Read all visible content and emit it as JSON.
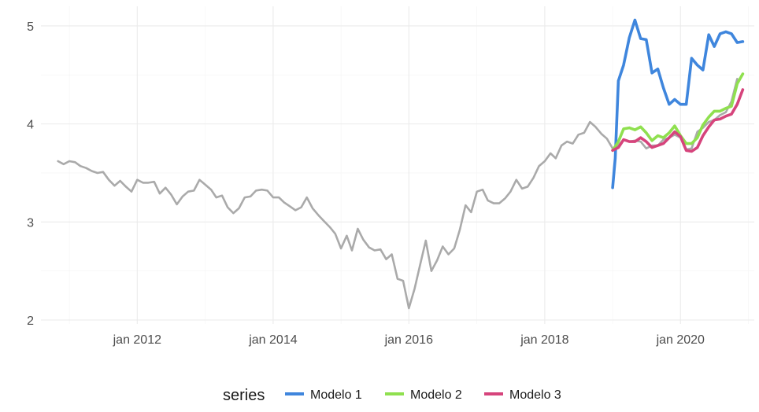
{
  "chart_data": {
    "type": "line",
    "title": "",
    "xlabel": "",
    "ylabel": "",
    "xlim": [
      "2010-08-01",
      "2021-02-01"
    ],
    "ylim": [
      1.96,
      5.2
    ],
    "y_ticks": [
      2,
      3,
      4,
      5
    ],
    "x_ticks": [
      {
        "date": "2012-01-01",
        "label": "jan 2012"
      },
      {
        "date": "2014-01-01",
        "label": "jan 2014"
      },
      {
        "date": "2016-01-01",
        "label": "jan 2016"
      },
      {
        "date": "2018-01-01",
        "label": "jan 2018"
      },
      {
        "date": "2020-01-01",
        "label": "jan 2020"
      }
    ],
    "grid": true,
    "legend": {
      "title": "series",
      "position": "bottom"
    },
    "series": [
      {
        "name": "",
        "color": "#aaaaaa",
        "points": [
          [
            "2010-11-01",
            3.62
          ],
          [
            "2010-12-01",
            3.59
          ],
          [
            "2011-01-01",
            3.62
          ],
          [
            "2011-02-01",
            3.61
          ],
          [
            "2011-03-01",
            3.57
          ],
          [
            "2011-04-01",
            3.55
          ],
          [
            "2011-05-01",
            3.52
          ],
          [
            "2011-06-01",
            3.5
          ],
          [
            "2011-07-01",
            3.51
          ],
          [
            "2011-08-01",
            3.43
          ],
          [
            "2011-09-01",
            3.37
          ],
          [
            "2011-10-01",
            3.42
          ],
          [
            "2011-11-01",
            3.36
          ],
          [
            "2011-12-01",
            3.31
          ],
          [
            "2012-01-01",
            3.43
          ],
          [
            "2012-02-01",
            3.4
          ],
          [
            "2012-03-01",
            3.4
          ],
          [
            "2012-04-01",
            3.41
          ],
          [
            "2012-05-01",
            3.29
          ],
          [
            "2012-06-01",
            3.35
          ],
          [
            "2012-07-01",
            3.28
          ],
          [
            "2012-08-01",
            3.18
          ],
          [
            "2012-09-01",
            3.26
          ],
          [
            "2012-10-01",
            3.31
          ],
          [
            "2012-11-01",
            3.32
          ],
          [
            "2012-12-01",
            3.43
          ],
          [
            "2013-01-01",
            3.38
          ],
          [
            "2013-02-01",
            3.33
          ],
          [
            "2013-03-01",
            3.25
          ],
          [
            "2013-04-01",
            3.27
          ],
          [
            "2013-05-01",
            3.15
          ],
          [
            "2013-06-01",
            3.09
          ],
          [
            "2013-07-01",
            3.14
          ],
          [
            "2013-08-01",
            3.25
          ],
          [
            "2013-09-01",
            3.26
          ],
          [
            "2013-10-01",
            3.32
          ],
          [
            "2013-11-01",
            3.33
          ],
          [
            "2013-12-01",
            3.32
          ],
          [
            "2014-01-01",
            3.25
          ],
          [
            "2014-02-01",
            3.25
          ],
          [
            "2014-03-01",
            3.2
          ],
          [
            "2014-04-01",
            3.16
          ],
          [
            "2014-05-01",
            3.12
          ],
          [
            "2014-06-01",
            3.15
          ],
          [
            "2014-07-01",
            3.25
          ],
          [
            "2014-08-01",
            3.14
          ],
          [
            "2014-09-01",
            3.07
          ],
          [
            "2014-10-01",
            3.01
          ],
          [
            "2014-11-01",
            2.95
          ],
          [
            "2014-12-01",
            2.88
          ],
          [
            "2015-01-01",
            2.73
          ],
          [
            "2015-02-01",
            2.86
          ],
          [
            "2015-03-01",
            2.71
          ],
          [
            "2015-04-01",
            2.93
          ],
          [
            "2015-05-01",
            2.82
          ],
          [
            "2015-06-01",
            2.74
          ],
          [
            "2015-07-01",
            2.71
          ],
          [
            "2015-08-01",
            2.72
          ],
          [
            "2015-09-01",
            2.62
          ],
          [
            "2015-10-01",
            2.67
          ],
          [
            "2015-11-01",
            2.42
          ],
          [
            "2015-12-01",
            2.4
          ],
          [
            "2016-01-01",
            2.12
          ],
          [
            "2016-02-01",
            2.32
          ],
          [
            "2016-03-01",
            2.56
          ],
          [
            "2016-04-01",
            2.81
          ],
          [
            "2016-05-01",
            2.5
          ],
          [
            "2016-06-01",
            2.61
          ],
          [
            "2016-07-01",
            2.75
          ],
          [
            "2016-08-01",
            2.67
          ],
          [
            "2016-09-01",
            2.73
          ],
          [
            "2016-10-01",
            2.92
          ],
          [
            "2016-11-01",
            3.17
          ],
          [
            "2016-12-01",
            3.1
          ],
          [
            "2017-01-01",
            3.31
          ],
          [
            "2017-02-01",
            3.33
          ],
          [
            "2017-03-01",
            3.22
          ],
          [
            "2017-04-01",
            3.19
          ],
          [
            "2017-05-01",
            3.19
          ],
          [
            "2017-06-01",
            3.24
          ],
          [
            "2017-07-01",
            3.31
          ],
          [
            "2017-08-01",
            3.43
          ],
          [
            "2017-09-01",
            3.34
          ],
          [
            "2017-10-01",
            3.36
          ],
          [
            "2017-11-01",
            3.45
          ],
          [
            "2017-12-01",
            3.57
          ],
          [
            "2018-01-01",
            3.62
          ],
          [
            "2018-02-01",
            3.7
          ],
          [
            "2018-03-01",
            3.65
          ],
          [
            "2018-04-01",
            3.78
          ],
          [
            "2018-05-01",
            3.82
          ],
          [
            "2018-06-01",
            3.8
          ],
          [
            "2018-07-01",
            3.89
          ],
          [
            "2018-08-01",
            3.91
          ],
          [
            "2018-09-01",
            4.02
          ],
          [
            "2018-10-01",
            3.97
          ],
          [
            "2018-11-01",
            3.9
          ],
          [
            "2018-12-01",
            3.85
          ],
          [
            "2019-01-01",
            3.75
          ],
          [
            "2019-02-01",
            3.78
          ],
          [
            "2019-03-01",
            3.84
          ],
          [
            "2019-04-01",
            3.82
          ],
          [
            "2019-05-01",
            3.83
          ],
          [
            "2019-06-01",
            3.82
          ],
          [
            "2019-07-01",
            3.75
          ],
          [
            "2019-08-01",
            3.78
          ],
          [
            "2019-09-01",
            3.78
          ],
          [
            "2019-10-01",
            3.84
          ],
          [
            "2019-11-01",
            3.86
          ],
          [
            "2019-12-01",
            3.89
          ],
          [
            "2020-01-01",
            3.86
          ],
          [
            "2020-02-01",
            3.74
          ],
          [
            "2020-03-01",
            3.75
          ],
          [
            "2020-04-01",
            3.92
          ],
          [
            "2020-05-01",
            3.96
          ],
          [
            "2020-06-01",
            4.02
          ],
          [
            "2020-07-01",
            4.04
          ],
          [
            "2020-08-01",
            4.09
          ],
          [
            "2020-09-01",
            4.12
          ],
          [
            "2020-10-01",
            4.23
          ],
          [
            "2020-11-01",
            4.46
          ]
        ]
      },
      {
        "name": "Modelo 1",
        "color": "#3f86dd",
        "points": [
          [
            "2019-01-01",
            3.35
          ],
          [
            "2019-01-15",
            3.65
          ],
          [
            "2019-02-01",
            4.44
          ],
          [
            "2019-03-01",
            4.6
          ],
          [
            "2019-04-01",
            4.88
          ],
          [
            "2019-05-01",
            5.06
          ],
          [
            "2019-06-01",
            4.87
          ],
          [
            "2019-07-01",
            4.86
          ],
          [
            "2019-08-01",
            4.52
          ],
          [
            "2019-09-01",
            4.56
          ],
          [
            "2019-10-01",
            4.37
          ],
          [
            "2019-11-01",
            4.2
          ],
          [
            "2019-12-01",
            4.25
          ],
          [
            "2020-01-01",
            4.2
          ],
          [
            "2020-02-01",
            4.2
          ],
          [
            "2020-03-01",
            4.67
          ],
          [
            "2020-04-01",
            4.6
          ],
          [
            "2020-05-01",
            4.55
          ],
          [
            "2020-06-01",
            4.91
          ],
          [
            "2020-07-01",
            4.79
          ],
          [
            "2020-08-01",
            4.92
          ],
          [
            "2020-09-01",
            4.94
          ],
          [
            "2020-10-01",
            4.92
          ],
          [
            "2020-11-01",
            4.83
          ],
          [
            "2020-12-01",
            4.84
          ]
        ]
      },
      {
        "name": "Modelo 2",
        "color": "#8fe04f",
        "points": [
          [
            "2019-01-01",
            3.73
          ],
          [
            "2019-02-01",
            3.82
          ],
          [
            "2019-03-01",
            3.95
          ],
          [
            "2019-04-01",
            3.96
          ],
          [
            "2019-05-01",
            3.94
          ],
          [
            "2019-06-01",
            3.97
          ],
          [
            "2019-07-01",
            3.91
          ],
          [
            "2019-08-01",
            3.83
          ],
          [
            "2019-09-01",
            3.88
          ],
          [
            "2019-10-01",
            3.86
          ],
          [
            "2019-11-01",
            3.91
          ],
          [
            "2019-12-01",
            3.98
          ],
          [
            "2020-01-01",
            3.88
          ],
          [
            "2020-02-01",
            3.8
          ],
          [
            "2020-03-01",
            3.8
          ],
          [
            "2020-04-01",
            3.86
          ],
          [
            "2020-05-01",
            3.99
          ],
          [
            "2020-06-01",
            4.07
          ],
          [
            "2020-07-01",
            4.13
          ],
          [
            "2020-08-01",
            4.13
          ],
          [
            "2020-09-01",
            4.16
          ],
          [
            "2020-10-01",
            4.18
          ],
          [
            "2020-11-01",
            4.41
          ],
          [
            "2020-12-01",
            4.51
          ]
        ]
      },
      {
        "name": "Modelo 3",
        "color": "#d6447c",
        "points": [
          [
            "2019-01-01",
            3.73
          ],
          [
            "2019-02-01",
            3.76
          ],
          [
            "2019-03-01",
            3.84
          ],
          [
            "2019-04-01",
            3.82
          ],
          [
            "2019-05-01",
            3.82
          ],
          [
            "2019-06-01",
            3.86
          ],
          [
            "2019-07-01",
            3.82
          ],
          [
            "2019-08-01",
            3.76
          ],
          [
            "2019-09-01",
            3.78
          ],
          [
            "2019-10-01",
            3.8
          ],
          [
            "2019-11-01",
            3.86
          ],
          [
            "2019-12-01",
            3.92
          ],
          [
            "2020-01-01",
            3.87
          ],
          [
            "2020-02-01",
            3.73
          ],
          [
            "2020-03-01",
            3.72
          ],
          [
            "2020-04-01",
            3.76
          ],
          [
            "2020-05-01",
            3.88
          ],
          [
            "2020-06-01",
            3.97
          ],
          [
            "2020-07-01",
            4.04
          ],
          [
            "2020-08-01",
            4.05
          ],
          [
            "2020-09-01",
            4.08
          ],
          [
            "2020-10-01",
            4.1
          ],
          [
            "2020-11-01",
            4.2
          ],
          [
            "2020-12-01",
            4.35
          ]
        ]
      }
    ]
  }
}
